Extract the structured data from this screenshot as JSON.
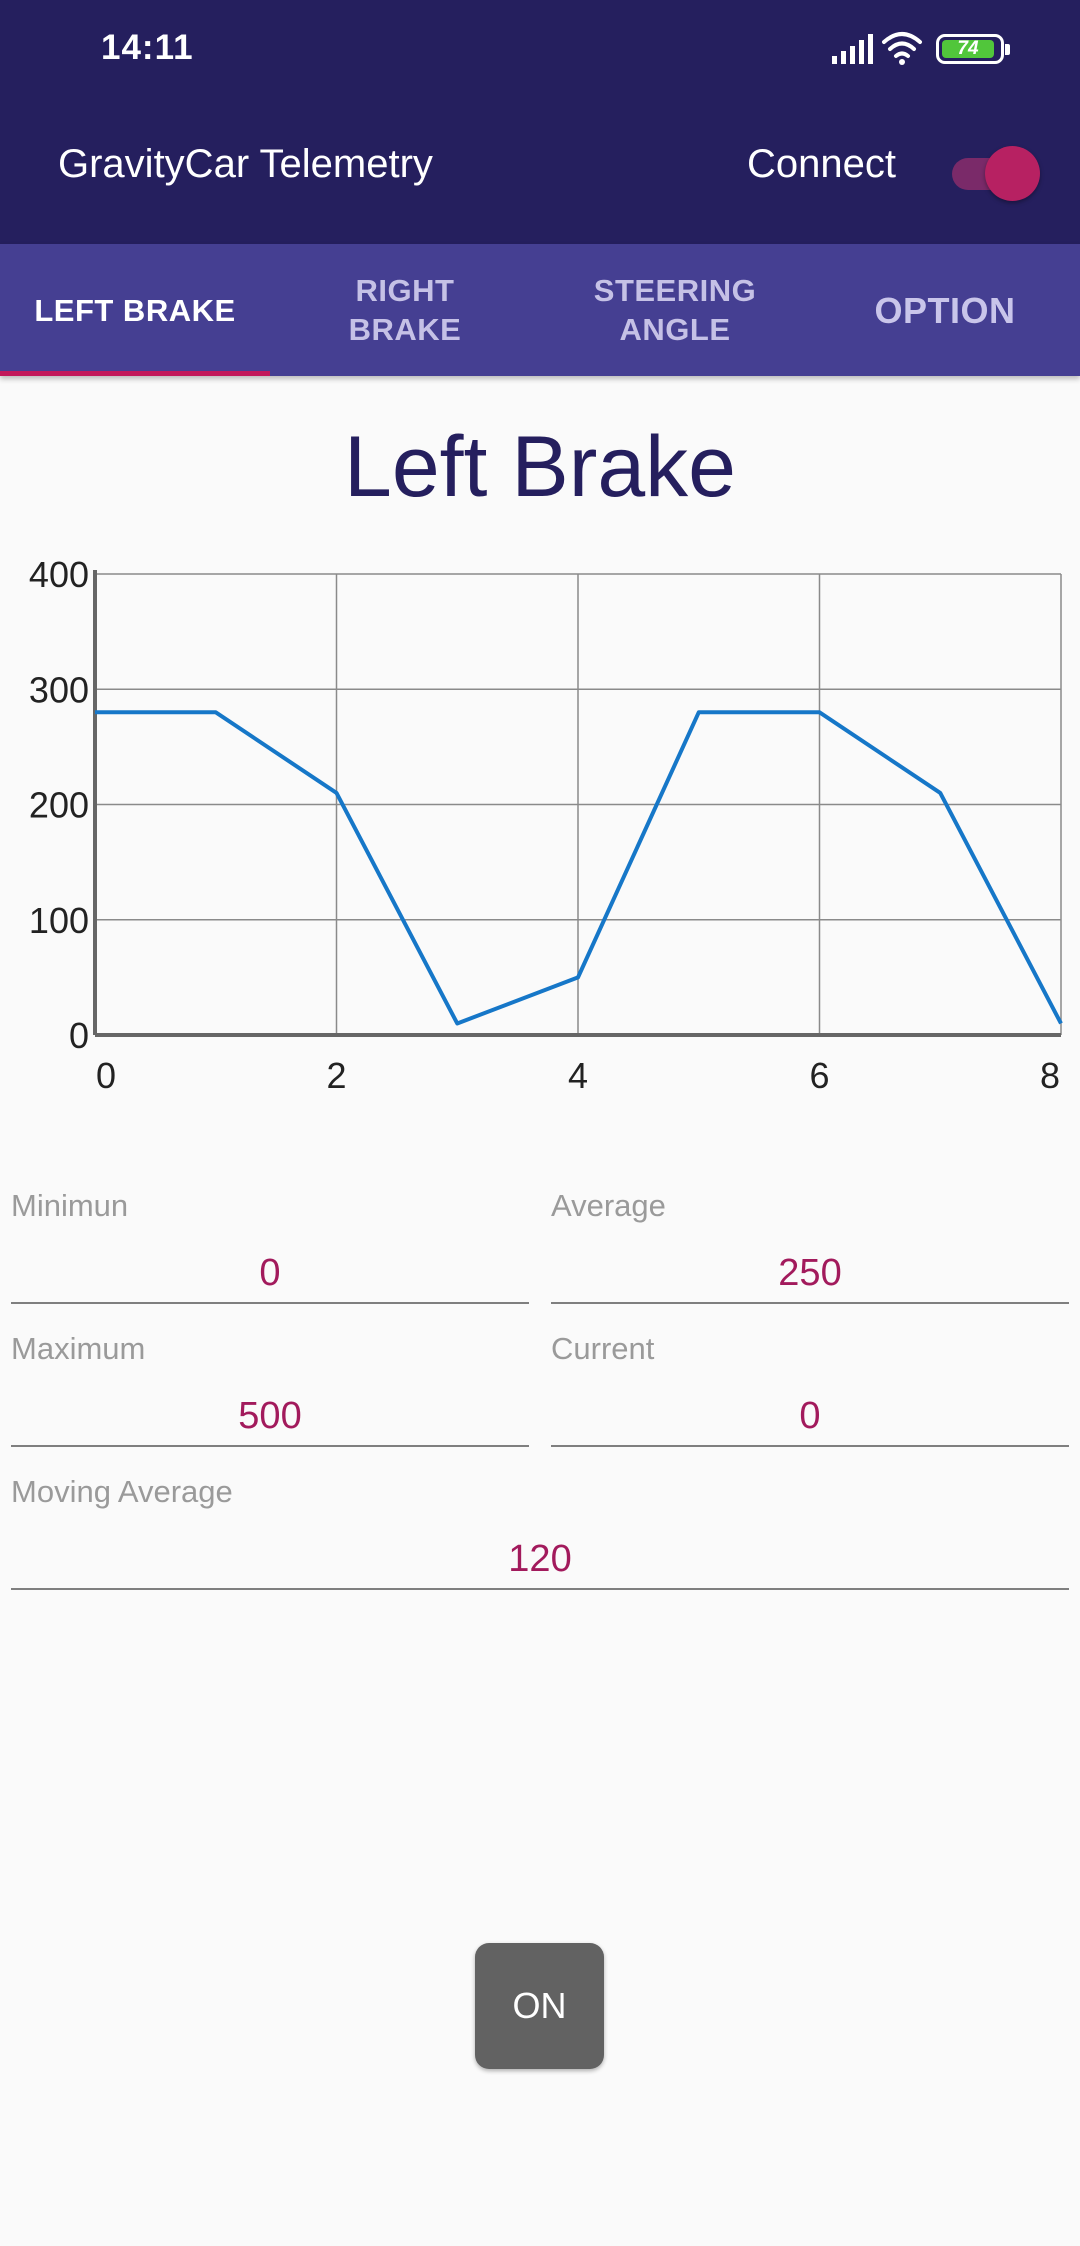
{
  "status_bar": {
    "time": "14:11",
    "battery_level": "74",
    "icons": [
      "signal-icon",
      "wifi-icon",
      "battery-icon"
    ]
  },
  "app_bar": {
    "title": "GravityCar Telemetry",
    "connect_label": "Connect",
    "connect_switch_on": true
  },
  "tabs": [
    {
      "label": "LEFT BRAKE",
      "active": true
    },
    {
      "label": "RIGHT\nBRAKE",
      "active": false
    },
    {
      "label": "STEERING\nANGLE",
      "active": false
    },
    {
      "label": "OPTION",
      "active": false
    }
  ],
  "page_title": "Left Brake",
  "colors": {
    "primary_dark": "#251f5e",
    "tab_bar": "#453f92",
    "accent": "#c2185b",
    "line": "#1677c8",
    "value_text": "#a21a5c"
  },
  "chart_data": {
    "type": "line",
    "title": "",
    "xlabel": "",
    "ylabel": "",
    "xlim": [
      0,
      8
    ],
    "ylim": [
      0,
      400
    ],
    "x_ticks": [
      "0",
      "2",
      "4",
      "6",
      "8"
    ],
    "y_ticks": [
      "0",
      "100",
      "200",
      "300",
      "400"
    ],
    "grid": true,
    "series": [
      {
        "x": [
          0,
          1,
          2,
          3,
          4,
          5,
          6,
          7,
          8
        ],
        "y": [
          280,
          280,
          210,
          10,
          50,
          280,
          280,
          210,
          10
        ]
      }
    ]
  },
  "stats": {
    "minimum": {
      "label": "Minimun",
      "value": "0"
    },
    "average": {
      "label": "Average",
      "value": "250"
    },
    "maximum": {
      "label": "Maximum",
      "value": "500"
    },
    "current": {
      "label": "Current",
      "value": "0"
    },
    "moving_average": {
      "label": "Moving Average",
      "value": "120"
    }
  },
  "on_button_label": "ON"
}
